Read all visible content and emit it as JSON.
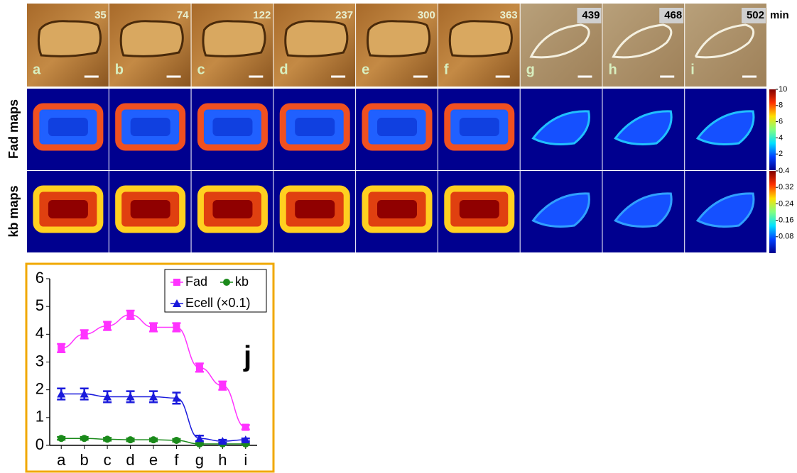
{
  "panels": [
    {
      "time": "35",
      "letter": "a"
    },
    {
      "time": "74",
      "letter": "b"
    },
    {
      "time": "122",
      "letter": "c"
    },
    {
      "time": "237",
      "letter": "d"
    },
    {
      "time": "300",
      "letter": "e"
    },
    {
      "time": "363",
      "letter": "f"
    },
    {
      "time": "439",
      "letter": "g"
    },
    {
      "time": "468",
      "letter": "h"
    },
    {
      "time": "502",
      "letter": "i"
    }
  ],
  "time_unit": "min",
  "row_labels": [
    "Fad maps",
    "kb maps"
  ],
  "fad_colorbar": {
    "lim": [
      0,
      10
    ],
    "ticks": [
      10,
      8,
      6,
      4,
      2
    ]
  },
  "kb_colorbar": {
    "lim": [
      0,
      0.4
    ],
    "ticks": [
      0.4,
      0.32,
      0.24,
      0.16,
      0.08
    ]
  },
  "chart_data": {
    "type": "line",
    "panel_label": "j",
    "categories": [
      "a",
      "b",
      "c",
      "d",
      "e",
      "f",
      "g",
      "h",
      "i"
    ],
    "ylim": [
      0,
      6
    ],
    "yticks": [
      0,
      1,
      2,
      3,
      4,
      5,
      6
    ],
    "series": [
      {
        "name": "Fad",
        "color": "#ff33ff",
        "marker": "square",
        "values": [
          3.5,
          4.0,
          4.3,
          4.7,
          4.25,
          4.25,
          2.8,
          2.15,
          0.65
        ],
        "errors": [
          0.15,
          0.15,
          0.15,
          0.15,
          0.15,
          0.15,
          0.15,
          0.15,
          0.08
        ]
      },
      {
        "name": "kb",
        "color": "#1a8a1a",
        "marker": "circle",
        "values": [
          0.25,
          0.25,
          0.22,
          0.2,
          0.2,
          0.18,
          0.05,
          0.05,
          0.05
        ],
        "errors": [
          0.05,
          0.05,
          0.05,
          0.05,
          0.05,
          0.05,
          0.03,
          0.03,
          0.03
        ]
      },
      {
        "name": "Ecell (×0.1)",
        "color": "#1a1adc",
        "marker": "triangle",
        "values": [
          1.85,
          1.85,
          1.75,
          1.75,
          1.75,
          1.7,
          0.25,
          0.15,
          0.2
        ],
        "errors": [
          0.2,
          0.2,
          0.2,
          0.2,
          0.2,
          0.2,
          0.1,
          0.05,
          0.05
        ]
      }
    ]
  }
}
